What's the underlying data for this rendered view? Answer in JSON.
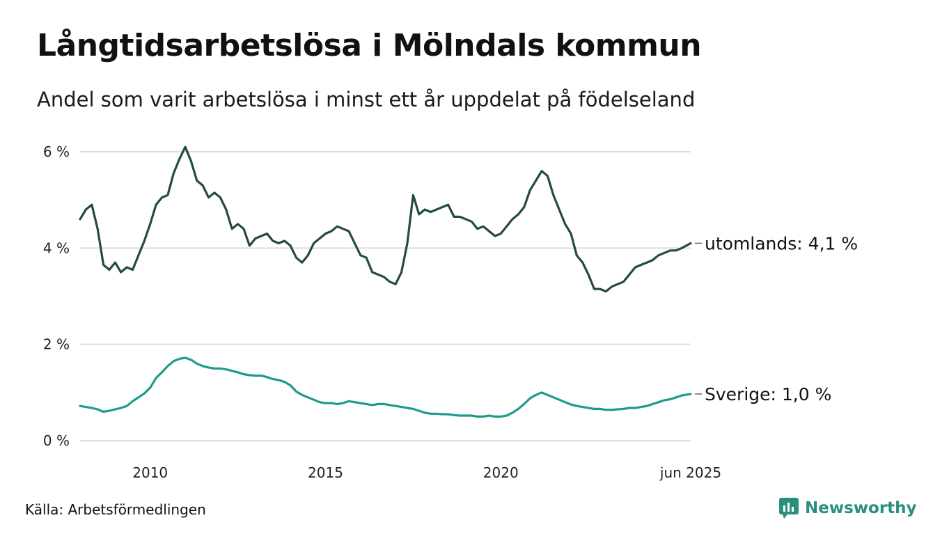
{
  "header": {
    "title": "Långtidsarbetslösa i Mölndals kommun",
    "subtitle": "Andel som varit arbetslösa i minst ett år uppdelat på födelseland"
  },
  "footer": {
    "source": "Källa: Arbetsförmedlingen",
    "brand": "Newsworthy"
  },
  "colors": {
    "utomlands": "#234a43",
    "sverige": "#1f9a8a",
    "grid": "#dddddd",
    "brand": "#2b8f7f"
  },
  "icons": {
    "brand_logo": "newsworthy-logo-icon"
  },
  "chart_data": {
    "type": "line",
    "title": "Långtidsarbetslösa i Mölndals kommun",
    "subtitle": "Andel som varit arbetslösa i minst ett år uppdelat på födelseland",
    "x_unit": "month",
    "x_range": [
      "2008-01",
      "2025-06"
    ],
    "ylim": [
      0,
      6
    ],
    "y_ticks": [
      {
        "value": 0,
        "label": "0 %"
      },
      {
        "value": 2,
        "label": "2 %"
      },
      {
        "value": 4,
        "label": "4 %"
      },
      {
        "value": 6,
        "label": "6 %"
      }
    ],
    "x_ticks": [
      {
        "date": "2010-01",
        "label": "2010"
      },
      {
        "date": "2015-01",
        "label": "2015"
      },
      {
        "date": "2020-01",
        "label": "2020"
      },
      {
        "date": "2025-06",
        "label": "jun 2025"
      }
    ],
    "grid": "horizontal",
    "legend": "end-of-line labels",
    "series": [
      {
        "name": "utomlands",
        "end_label": "utomlands: 4,1 %",
        "points": [
          [
            "2008-01",
            4.6
          ],
          [
            "2008-03",
            4.8
          ],
          [
            "2008-05",
            4.9
          ],
          [
            "2008-07",
            4.4
          ],
          [
            "2008-09",
            3.65
          ],
          [
            "2008-11",
            3.55
          ],
          [
            "2009-01",
            3.7
          ],
          [
            "2009-03",
            3.5
          ],
          [
            "2009-05",
            3.6
          ],
          [
            "2009-07",
            3.55
          ],
          [
            "2009-09",
            3.85
          ],
          [
            "2009-11",
            4.15
          ],
          [
            "2010-01",
            4.5
          ],
          [
            "2010-03",
            4.9
          ],
          [
            "2010-05",
            5.05
          ],
          [
            "2010-07",
            5.1
          ],
          [
            "2010-09",
            5.55
          ],
          [
            "2010-11",
            5.85
          ],
          [
            "2011-01",
            6.1
          ],
          [
            "2011-03",
            5.8
          ],
          [
            "2011-05",
            5.4
          ],
          [
            "2011-07",
            5.3
          ],
          [
            "2011-09",
            5.05
          ],
          [
            "2011-11",
            5.15
          ],
          [
            "2012-01",
            5.05
          ],
          [
            "2012-03",
            4.8
          ],
          [
            "2012-05",
            4.4
          ],
          [
            "2012-07",
            4.5
          ],
          [
            "2012-09",
            4.4
          ],
          [
            "2012-11",
            4.05
          ],
          [
            "2013-01",
            4.2
          ],
          [
            "2013-03",
            4.25
          ],
          [
            "2013-05",
            4.3
          ],
          [
            "2013-07",
            4.15
          ],
          [
            "2013-09",
            4.1
          ],
          [
            "2013-11",
            4.15
          ],
          [
            "2014-01",
            4.05
          ],
          [
            "2014-03",
            3.8
          ],
          [
            "2014-05",
            3.7
          ],
          [
            "2014-07",
            3.85
          ],
          [
            "2014-09",
            4.1
          ],
          [
            "2014-11",
            4.2
          ],
          [
            "2015-01",
            4.3
          ],
          [
            "2015-03",
            4.35
          ],
          [
            "2015-05",
            4.45
          ],
          [
            "2015-07",
            4.4
          ],
          [
            "2015-09",
            4.35
          ],
          [
            "2015-11",
            4.1
          ],
          [
            "2016-01",
            3.85
          ],
          [
            "2016-03",
            3.8
          ],
          [
            "2016-05",
            3.5
          ],
          [
            "2016-07",
            3.45
          ],
          [
            "2016-09",
            3.4
          ],
          [
            "2016-11",
            3.3
          ],
          [
            "2017-01",
            3.25
          ],
          [
            "2017-03",
            3.5
          ],
          [
            "2017-05",
            4.1
          ],
          [
            "2017-07",
            5.1
          ],
          [
            "2017-09",
            4.7
          ],
          [
            "2017-11",
            4.8
          ],
          [
            "2018-01",
            4.75
          ],
          [
            "2018-03",
            4.8
          ],
          [
            "2018-05",
            4.85
          ],
          [
            "2018-07",
            4.9
          ],
          [
            "2018-09",
            4.65
          ],
          [
            "2018-11",
            4.65
          ],
          [
            "2019-01",
            4.6
          ],
          [
            "2019-03",
            4.55
          ],
          [
            "2019-05",
            4.4
          ],
          [
            "2019-07",
            4.45
          ],
          [
            "2019-09",
            4.35
          ],
          [
            "2019-11",
            4.25
          ],
          [
            "2020-01",
            4.3
          ],
          [
            "2020-03",
            4.45
          ],
          [
            "2020-05",
            4.6
          ],
          [
            "2020-07",
            4.7
          ],
          [
            "2020-09",
            4.85
          ],
          [
            "2020-11",
            5.2
          ],
          [
            "2021-01",
            5.4
          ],
          [
            "2021-03",
            5.6
          ],
          [
            "2021-05",
            5.5
          ],
          [
            "2021-07",
            5.1
          ],
          [
            "2021-09",
            4.8
          ],
          [
            "2021-11",
            4.5
          ],
          [
            "2022-01",
            4.3
          ],
          [
            "2022-03",
            3.85
          ],
          [
            "2022-05",
            3.7
          ],
          [
            "2022-07",
            3.45
          ],
          [
            "2022-09",
            3.15
          ],
          [
            "2022-11",
            3.15
          ],
          [
            "2023-01",
            3.1
          ],
          [
            "2023-03",
            3.2
          ],
          [
            "2023-05",
            3.25
          ],
          [
            "2023-07",
            3.3
          ],
          [
            "2023-09",
            3.45
          ],
          [
            "2023-11",
            3.6
          ],
          [
            "2024-01",
            3.65
          ],
          [
            "2024-03",
            3.7
          ],
          [
            "2024-05",
            3.75
          ],
          [
            "2024-07",
            3.85
          ],
          [
            "2024-09",
            3.9
          ],
          [
            "2024-11",
            3.95
          ],
          [
            "2025-01",
            3.95
          ],
          [
            "2025-03",
            4.0
          ],
          [
            "2025-06",
            4.1
          ]
        ]
      },
      {
        "name": "Sverige",
        "end_label": "Sverige: 1,0 %",
        "points": [
          [
            "2008-01",
            0.72
          ],
          [
            "2008-03",
            0.7
          ],
          [
            "2008-05",
            0.68
          ],
          [
            "2008-07",
            0.65
          ],
          [
            "2008-09",
            0.6
          ],
          [
            "2008-11",
            0.62
          ],
          [
            "2009-01",
            0.65
          ],
          [
            "2009-03",
            0.68
          ],
          [
            "2009-05",
            0.72
          ],
          [
            "2009-07",
            0.82
          ],
          [
            "2009-09",
            0.9
          ],
          [
            "2009-11",
            0.98
          ],
          [
            "2010-01",
            1.1
          ],
          [
            "2010-03",
            1.3
          ],
          [
            "2010-05",
            1.42
          ],
          [
            "2010-07",
            1.55
          ],
          [
            "2010-09",
            1.65
          ],
          [
            "2010-11",
            1.7
          ],
          [
            "2011-01",
            1.72
          ],
          [
            "2011-03",
            1.68
          ],
          [
            "2011-05",
            1.6
          ],
          [
            "2011-07",
            1.55
          ],
          [
            "2011-09",
            1.52
          ],
          [
            "2011-11",
            1.5
          ],
          [
            "2012-01",
            1.5
          ],
          [
            "2012-03",
            1.48
          ],
          [
            "2012-05",
            1.45
          ],
          [
            "2012-07",
            1.42
          ],
          [
            "2012-09",
            1.38
          ],
          [
            "2012-11",
            1.36
          ],
          [
            "2013-01",
            1.35
          ],
          [
            "2013-03",
            1.35
          ],
          [
            "2013-05",
            1.32
          ],
          [
            "2013-07",
            1.28
          ],
          [
            "2013-09",
            1.26
          ],
          [
            "2013-11",
            1.22
          ],
          [
            "2014-01",
            1.15
          ],
          [
            "2014-03",
            1.02
          ],
          [
            "2014-05",
            0.95
          ],
          [
            "2014-07",
            0.9
          ],
          [
            "2014-09",
            0.85
          ],
          [
            "2014-11",
            0.8
          ],
          [
            "2015-01",
            0.78
          ],
          [
            "2015-03",
            0.78
          ],
          [
            "2015-05",
            0.76
          ],
          [
            "2015-07",
            0.78
          ],
          [
            "2015-09",
            0.82
          ],
          [
            "2015-11",
            0.8
          ],
          [
            "2016-01",
            0.78
          ],
          [
            "2016-03",
            0.76
          ],
          [
            "2016-05",
            0.74
          ],
          [
            "2016-07",
            0.76
          ],
          [
            "2016-09",
            0.76
          ],
          [
            "2016-11",
            0.74
          ],
          [
            "2017-01",
            0.72
          ],
          [
            "2017-03",
            0.7
          ],
          [
            "2017-05",
            0.68
          ],
          [
            "2017-07",
            0.66
          ],
          [
            "2017-09",
            0.62
          ],
          [
            "2017-11",
            0.58
          ],
          [
            "2018-01",
            0.56
          ],
          [
            "2018-03",
            0.56
          ],
          [
            "2018-05",
            0.55
          ],
          [
            "2018-07",
            0.55
          ],
          [
            "2018-09",
            0.53
          ],
          [
            "2018-11",
            0.52
          ],
          [
            "2019-01",
            0.52
          ],
          [
            "2019-03",
            0.52
          ],
          [
            "2019-05",
            0.5
          ],
          [
            "2019-07",
            0.5
          ],
          [
            "2019-09",
            0.52
          ],
          [
            "2019-11",
            0.5
          ],
          [
            "2020-01",
            0.5
          ],
          [
            "2020-03",
            0.52
          ],
          [
            "2020-05",
            0.58
          ],
          [
            "2020-07",
            0.66
          ],
          [
            "2020-09",
            0.76
          ],
          [
            "2020-11",
            0.88
          ],
          [
            "2021-01",
            0.95
          ],
          [
            "2021-03",
            1.0
          ],
          [
            "2021-05",
            0.95
          ],
          [
            "2021-07",
            0.9
          ],
          [
            "2021-09",
            0.85
          ],
          [
            "2021-11",
            0.8
          ],
          [
            "2022-01",
            0.75
          ],
          [
            "2022-03",
            0.72
          ],
          [
            "2022-05",
            0.7
          ],
          [
            "2022-07",
            0.68
          ],
          [
            "2022-09",
            0.66
          ],
          [
            "2022-11",
            0.66
          ],
          [
            "2023-01",
            0.64
          ],
          [
            "2023-03",
            0.64
          ],
          [
            "2023-05",
            0.65
          ],
          [
            "2023-07",
            0.66
          ],
          [
            "2023-09",
            0.68
          ],
          [
            "2023-11",
            0.68
          ],
          [
            "2024-01",
            0.7
          ],
          [
            "2024-03",
            0.72
          ],
          [
            "2024-05",
            0.76
          ],
          [
            "2024-07",
            0.8
          ],
          [
            "2024-09",
            0.84
          ],
          [
            "2024-11",
            0.86
          ],
          [
            "2025-01",
            0.9
          ],
          [
            "2025-03",
            0.94
          ],
          [
            "2025-06",
            0.97
          ]
        ]
      }
    ]
  }
}
